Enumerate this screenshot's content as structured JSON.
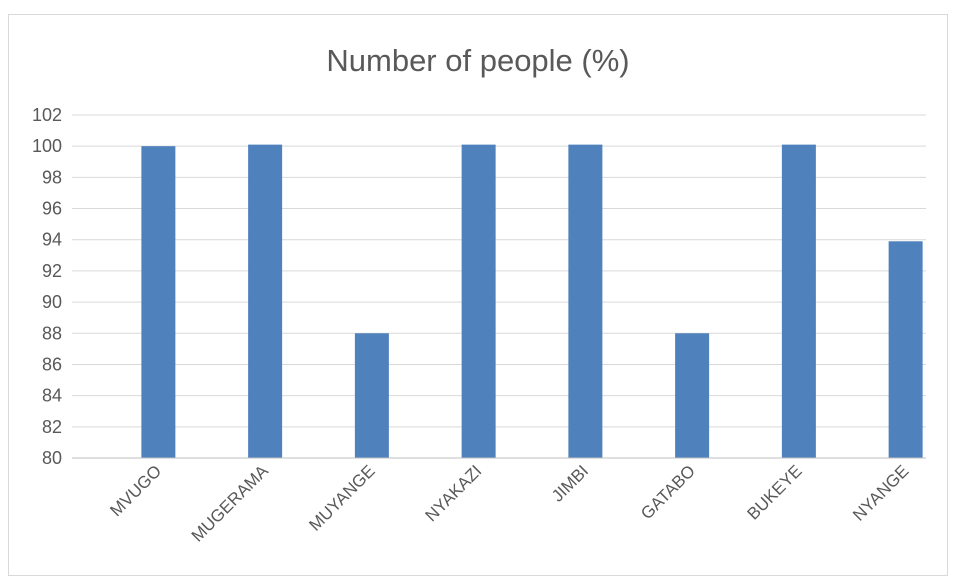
{
  "chart_data": {
    "type": "bar",
    "title": "Number of people (%)",
    "xlabel": "",
    "ylabel": "",
    "categories": [
      "MVUGO",
      "MUGERAMA",
      "MUYANGE",
      "NYAKAZI",
      "JIMBI",
      "GATABO",
      "BUKEYE",
      "NYANGE"
    ],
    "values": [
      100,
      100.1,
      88,
      100.1,
      100.1,
      88,
      100.1,
      93.9
    ],
    "ylim": [
      80,
      102
    ],
    "yticks": [
      80,
      82,
      84,
      86,
      88,
      90,
      92,
      94,
      96,
      98,
      100,
      102
    ],
    "grid": true,
    "legend": "none",
    "bar_color": "#4f81bd",
    "grid_color": "#d9d9d9",
    "axis_color": "#bfbfbf",
    "label_color": "#595959"
  }
}
